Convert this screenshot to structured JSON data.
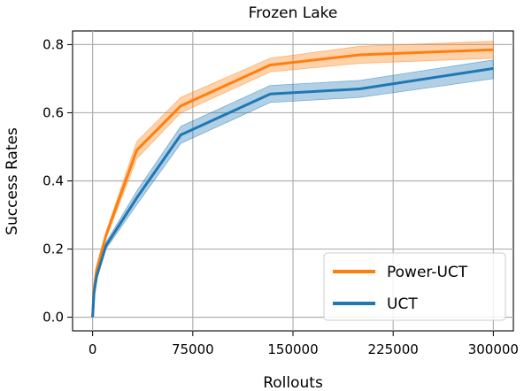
{
  "chart_data": {
    "type": "line",
    "title": "Frozen Lake",
    "xlabel": "Rollouts",
    "ylabel": "Success Rates",
    "xlim": [
      -15000,
      315000
    ],
    "ylim": [
      -0.04,
      0.84
    ],
    "xticks": [
      0,
      75000,
      150000,
      225000,
      300000
    ],
    "xtick_labels": [
      "0",
      "75000",
      "150000",
      "225000",
      "300000"
    ],
    "yticks": [
      0.0,
      0.2,
      0.4,
      0.6,
      0.8
    ],
    "ytick_labels": [
      "0.0",
      "0.2",
      "0.4",
      "0.6",
      "0.8"
    ],
    "grid": true,
    "legend_position": "bottom-right",
    "x": [
      0,
      1000,
      3000,
      10000,
      33000,
      66000,
      133000,
      200000,
      300000
    ],
    "series": [
      {
        "name": "Power-UCT",
        "color": "#ff7f0e",
        "values": [
          0.0,
          0.08,
          0.14,
          0.24,
          0.49,
          0.62,
          0.74,
          0.77,
          0.785
        ],
        "lower": [
          0.0,
          0.07,
          0.13,
          0.23,
          0.465,
          0.6,
          0.72,
          0.745,
          0.76
        ],
        "upper": [
          0.0,
          0.09,
          0.15,
          0.25,
          0.515,
          0.645,
          0.76,
          0.795,
          0.81
        ]
      },
      {
        "name": "UCT",
        "color": "#1f77b4",
        "values": [
          0.0,
          0.07,
          0.12,
          0.21,
          0.35,
          0.535,
          0.655,
          0.67,
          0.73
        ],
        "lower": [
          0.0,
          0.06,
          0.11,
          0.2,
          0.33,
          0.51,
          0.63,
          0.645,
          0.7
        ],
        "upper": [
          0.0,
          0.08,
          0.13,
          0.22,
          0.37,
          0.56,
          0.68,
          0.695,
          0.755
        ]
      }
    ]
  }
}
